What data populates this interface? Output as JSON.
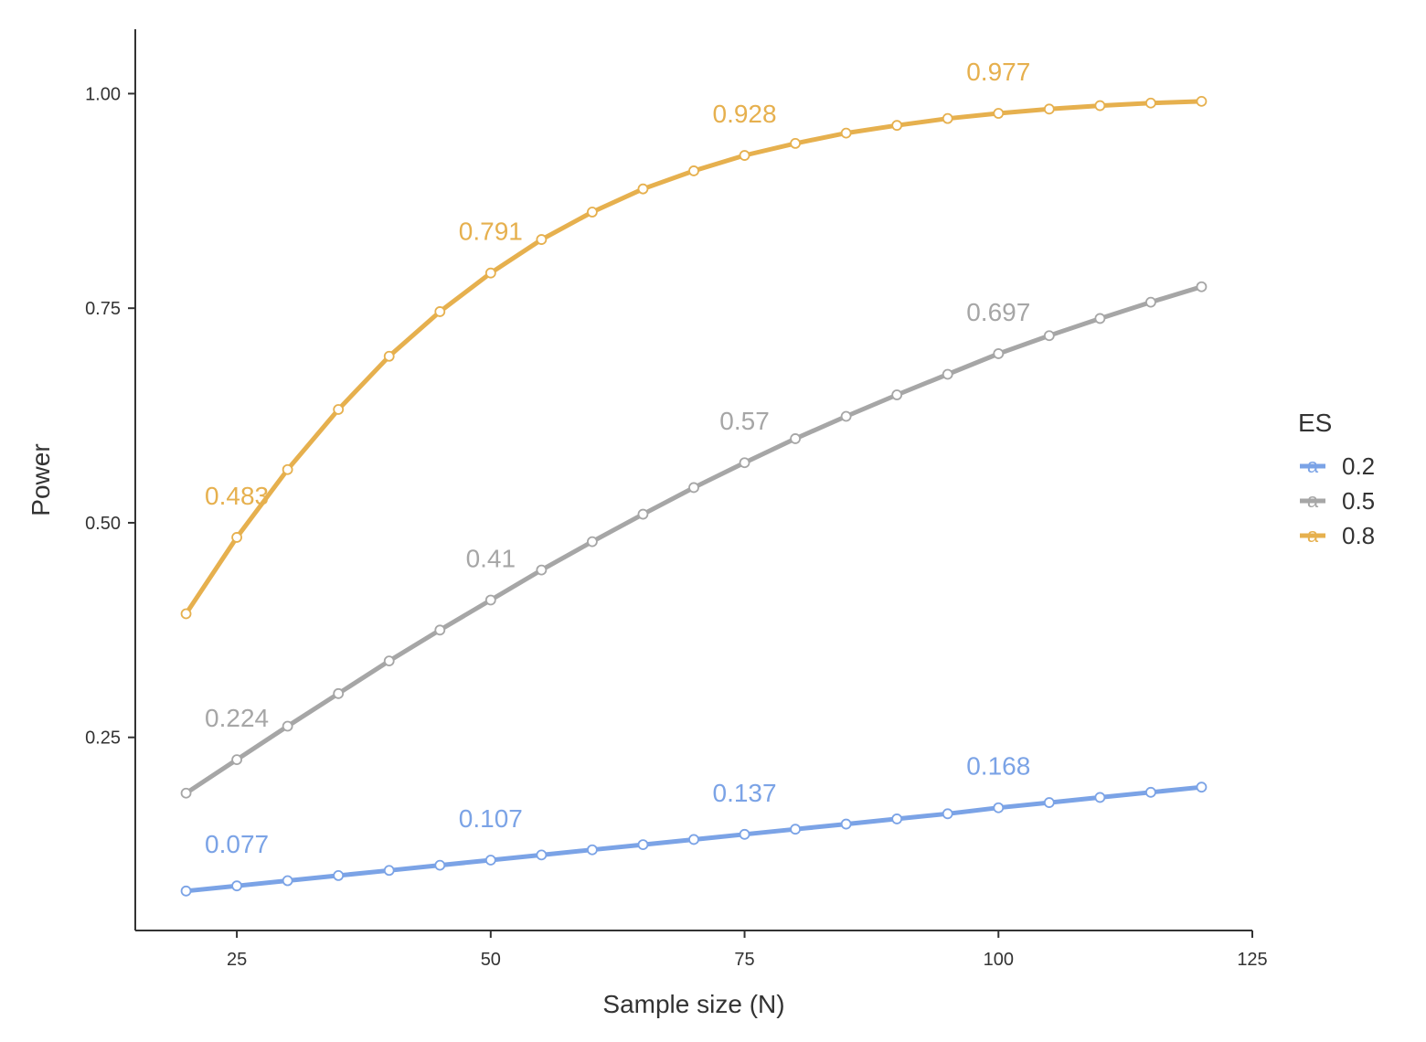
{
  "chart_data": {
    "type": "line",
    "title": "",
    "xlabel": "Sample size (N)",
    "ylabel": "Power",
    "xlim": [
      15,
      125
    ],
    "ylim": [
      0.025,
      1.075
    ],
    "x_ticks": [
      25,
      50,
      75,
      100,
      125
    ],
    "x_tick_labels": [
      "25",
      "50",
      "75",
      "100",
      "125"
    ],
    "y_ticks": [
      0.25,
      0.5,
      0.75,
      1.0
    ],
    "y_tick_labels": [
      "0.25",
      "0.50",
      "0.75",
      "1.00"
    ],
    "grid": false,
    "legend": {
      "title": "ES",
      "position": "right",
      "glyph": "a"
    },
    "x": [
      20,
      25,
      30,
      35,
      40,
      45,
      50,
      55,
      60,
      65,
      70,
      75,
      80,
      85,
      90,
      95,
      100,
      105,
      110,
      115,
      120
    ],
    "series": [
      {
        "name": "0.2",
        "color": "#7BA3E6",
        "values": [
          0.071,
          0.077,
          0.083,
          0.089,
          0.095,
          0.101,
          0.107,
          0.113,
          0.119,
          0.125,
          0.131,
          0.137,
          0.143,
          0.149,
          0.155,
          0.161,
          0.168,
          0.174,
          0.18,
          0.186,
          0.192
        ],
        "labels": [
          {
            "x": 25,
            "value": "0.077"
          },
          {
            "x": 50,
            "value": "0.107"
          },
          {
            "x": 75,
            "value": "0.137"
          },
          {
            "x": 100,
            "value": "0.168"
          }
        ]
      },
      {
        "name": "0.5",
        "color": "#A6A6A6",
        "values": [
          0.185,
          0.224,
          0.263,
          0.301,
          0.339,
          0.375,
          0.41,
          0.445,
          0.478,
          0.51,
          0.541,
          0.57,
          0.598,
          0.624,
          0.649,
          0.673,
          0.697,
          0.718,
          0.738,
          0.757,
          0.775
        ],
        "labels": [
          {
            "x": 25,
            "value": "0.224"
          },
          {
            "x": 50,
            "value": "0.41"
          },
          {
            "x": 75,
            "value": "0.57"
          },
          {
            "x": 100,
            "value": "0.697"
          }
        ]
      },
      {
        "name": "0.8",
        "color": "#E6B04E",
        "values": [
          0.394,
          0.483,
          0.562,
          0.632,
          0.694,
          0.746,
          0.791,
          0.83,
          0.862,
          0.889,
          0.91,
          0.928,
          0.942,
          0.954,
          0.963,
          0.971,
          0.977,
          0.982,
          0.986,
          0.989,
          0.991
        ],
        "labels": [
          {
            "x": 25,
            "value": "0.483"
          },
          {
            "x": 50,
            "value": "0.791"
          },
          {
            "x": 75,
            "value": "0.928"
          },
          {
            "x": 100,
            "value": "0.977"
          }
        ]
      }
    ]
  }
}
